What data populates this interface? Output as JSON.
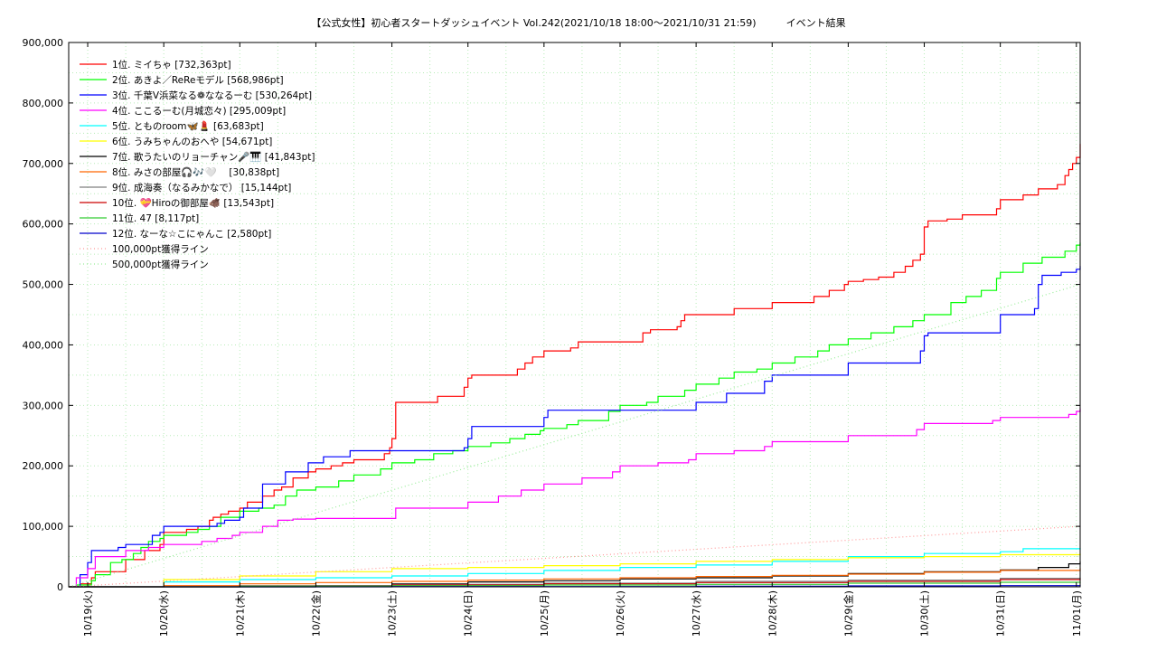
{
  "chart_data": {
    "type": "line",
    "title": "【公式女性】初心者スタートダッシュイベント Vol.242(2021/10/18 18:00～2021/10/31 21:59)　　　イベント結果",
    "xlabel": "",
    "ylabel": "",
    "ylim": [
      0,
      900000
    ],
    "xlim": [
      "2021-10-18 18:00",
      "2021-11-01 00:00"
    ],
    "y_ticks": [
      "0",
      "100,000",
      "200,000",
      "300,000",
      "400,000",
      "500,000",
      "600,000",
      "700,000",
      "800,000",
      "900,000"
    ],
    "x_ticks": [
      "10/19(火)",
      "10/20(水)",
      "10/21(木)",
      "10/22(金)",
      "10/23(土)",
      "10/24(日)",
      "10/25(月)",
      "10/26(火)",
      "10/27(水)",
      "10/28(木)",
      "10/29(金)",
      "10/30(土)",
      "10/31(日)",
      "11/01(月)"
    ],
    "grid": true,
    "legend_position": "top-left",
    "x_unit": "day offset from 10/19 00:00",
    "series": [
      {
        "name": "1位. ミイちゃ [732,363pt]",
        "color": "#ff0000",
        "style": "solid",
        "x": [
          -0.25,
          -0.1,
          0.05,
          0.1,
          0.35,
          0.5,
          0.75,
          0.95,
          1.0,
          1.3,
          1.45,
          1.6,
          1.65,
          1.75,
          1.85,
          2.0,
          2.1,
          2.3,
          2.45,
          2.55,
          2.7,
          2.9,
          3.0,
          3.2,
          3.35,
          3.5,
          3.9,
          3.97,
          4.0,
          4.05,
          4.3,
          4.6,
          4.95,
          5.0,
          5.05,
          5.4,
          5.65,
          5.75,
          5.85,
          6.0,
          6.35,
          6.45,
          7.0,
          7.3,
          7.4,
          7.75,
          7.8,
          7.85,
          8.0,
          8.4,
          8.5,
          9.0,
          9.35,
          9.55,
          9.75,
          9.95,
          10.0,
          10.2,
          10.4,
          10.6,
          10.75,
          10.85,
          10.95,
          11.0,
          11.05,
          11.3,
          11.5,
          11.95,
          12.0,
          12.3,
          12.5,
          12.75,
          12.85,
          12.9,
          12.95,
          13.0,
          13.05
        ],
        "y": [
          0,
          5000,
          15000,
          25000,
          25000,
          45000,
          60000,
          70000,
          90000,
          95000,
          100000,
          110000,
          115000,
          120000,
          125000,
          130000,
          140000,
          150000,
          160000,
          165000,
          180000,
          190000,
          195000,
          200000,
          205000,
          210000,
          220000,
          230000,
          245000,
          305000,
          305000,
          315000,
          330000,
          345000,
          350000,
          350000,
          360000,
          370000,
          380000,
          390000,
          395000,
          405000,
          405000,
          420000,
          425000,
          430000,
          440000,
          450000,
          450000,
          450000,
          460000,
          470000,
          470000,
          480000,
          490000,
          500000,
          505000,
          508000,
          512000,
          520000,
          530000,
          540000,
          550000,
          595000,
          605000,
          608000,
          615000,
          625000,
          640000,
          648000,
          658000,
          665000,
          680000,
          690000,
          700000,
          710000,
          732363
        ]
      },
      {
        "name": "2位. あきよ／ReReモデル [568,986pt]",
        "color": "#00ff00",
        "style": "solid",
        "x": [
          -0.25,
          -0.15,
          0.05,
          0.1,
          0.3,
          0.45,
          0.6,
          0.7,
          0.8,
          0.95,
          1.0,
          1.3,
          1.45,
          1.6,
          1.75,
          2.0,
          2.25,
          2.45,
          2.6,
          2.75,
          3.0,
          3.3,
          3.5,
          3.85,
          4.0,
          4.3,
          4.55,
          4.8,
          5.0,
          5.3,
          5.55,
          5.75,
          5.95,
          6.0,
          6.3,
          6.45,
          6.85,
          7.0,
          7.35,
          7.5,
          7.85,
          8.0,
          8.3,
          8.5,
          8.8,
          9.0,
          9.3,
          9.6,
          9.75,
          10.0,
          10.3,
          10.6,
          10.85,
          11.0,
          11.35,
          11.55,
          11.75,
          11.95,
          12.0,
          12.3,
          12.55,
          12.75,
          12.85,
          13.0,
          13.05
        ],
        "y": [
          0,
          3000,
          10000,
          20000,
          40000,
          45000,
          55000,
          65000,
          75000,
          80000,
          85000,
          90000,
          95000,
          100000,
          115000,
          125000,
          130000,
          135000,
          150000,
          160000,
          165000,
          175000,
          185000,
          195000,
          205000,
          210000,
          220000,
          225000,
          232000,
          238000,
          245000,
          252000,
          258000,
          262000,
          268000,
          275000,
          290000,
          300000,
          305000,
          315000,
          325000,
          335000,
          345000,
          355000,
          360000,
          370000,
          380000,
          390000,
          400000,
          410000,
          420000,
          430000,
          440000,
          450000,
          470000,
          480000,
          490000,
          510000,
          520000,
          535000,
          545000,
          545000,
          555000,
          565000,
          568986
        ]
      },
      {
        "name": "3位. 千葉V浜菜なる❁ななるーむ [530,264pt]",
        "color": "#0000ff",
        "style": "solid",
        "x": [
          -0.25,
          -0.1,
          0.0,
          0.05,
          0.4,
          0.5,
          0.85,
          0.95,
          1.0,
          1.7,
          1.8,
          2.0,
          2.05,
          2.3,
          2.6,
          2.9,
          3.1,
          3.45,
          3.9,
          4.3,
          4.95,
          5.0,
          5.05,
          5.9,
          6.0,
          6.05,
          7.0,
          7.95,
          8.0,
          8.4,
          8.9,
          9.0,
          9.9,
          10.0,
          10.95,
          11.0,
          11.05,
          11.9,
          12.0,
          12.45,
          12.5,
          12.55,
          12.8,
          13.0,
          13.05
        ],
        "y": [
          0,
          20000,
          40000,
          60000,
          65000,
          70000,
          85000,
          90000,
          100000,
          105000,
          110000,
          115000,
          130000,
          170000,
          190000,
          205000,
          215000,
          225000,
          225000,
          225000,
          230000,
          245000,
          265000,
          265000,
          280000,
          292000,
          292000,
          292000,
          305000,
          320000,
          340000,
          350000,
          350000,
          370000,
          390000,
          415000,
          420000,
          420000,
          450000,
          460000,
          500000,
          515000,
          520000,
          525000,
          530264
        ]
      },
      {
        "name": "4位. ここるーむ(月城恋々) [295,009pt]",
        "color": "#ff00ff",
        "style": "solid",
        "x": [
          -0.25,
          -0.15,
          0.0,
          0.1,
          0.5,
          0.8,
          1.0,
          1.5,
          1.7,
          1.9,
          2.0,
          2.3,
          2.5,
          2.7,
          3.0,
          4.0,
          4.05,
          5.0,
          5.4,
          5.7,
          6.0,
          6.5,
          6.9,
          7.0,
          7.5,
          7.9,
          8.0,
          8.5,
          8.9,
          9.0,
          9.9,
          10.0,
          10.9,
          11.0,
          11.9,
          12.0,
          12.9,
          13.0,
          13.05
        ],
        "y": [
          0,
          15000,
          30000,
          50000,
          60000,
          65000,
          70000,
          75000,
          80000,
          85000,
          90000,
          100000,
          110000,
          112000,
          113000,
          113000,
          130000,
          140000,
          150000,
          160000,
          170000,
          180000,
          190000,
          200000,
          205000,
          210000,
          220000,
          225000,
          232000,
          240000,
          240000,
          250000,
          260000,
          270000,
          275000,
          280000,
          285000,
          290000,
          295009
        ]
      },
      {
        "name": "5位. とものroom🦋💄 [63,683pt]",
        "color": "#00ffff",
        "style": "solid",
        "x": [
          -0.25,
          1.0,
          2.0,
          3.0,
          4.0,
          5.0,
          6.0,
          7.0,
          8.0,
          9.0,
          10.0,
          11.0,
          12.0,
          12.3,
          13.05
        ],
        "y": [
          0,
          8000,
          12000,
          15000,
          18000,
          22000,
          27000,
          32000,
          36000,
          42000,
          50000,
          55000,
          58000,
          63000,
          63683
        ]
      },
      {
        "name": "6位. うみちゃんのおへや [54,671pt]",
        "color": "#ffff00",
        "style": "solid",
        "x": [
          -0.25,
          1.0,
          2.0,
          3.0,
          4.0,
          5.0,
          6.0,
          7.0,
          8.0,
          9.0,
          10.0,
          11.0,
          12.0,
          13.05
        ],
        "y": [
          0,
          12000,
          18000,
          25000,
          30000,
          32000,
          35000,
          38000,
          42000,
          45000,
          48000,
          50000,
          53000,
          54671
        ]
      },
      {
        "name": "7位. 歌うたいのリョーチャン🎤🎹 [41,843pt]",
        "color": "#000000",
        "style": "solid",
        "x": [
          -0.25,
          1.0,
          3.0,
          4.0,
          5.0,
          6.0,
          7.0,
          8.0,
          9.0,
          10.0,
          11.0,
          12.0,
          12.5,
          12.9,
          13.05
        ],
        "y": [
          0,
          0,
          2000,
          5000,
          8000,
          10000,
          13000,
          15000,
          18000,
          22000,
          25000,
          28000,
          32000,
          38000,
          41843
        ]
      },
      {
        "name": "8位. みさの部屋🎧🎶🤍　 [30,838pt]",
        "color": "#ff6600",
        "style": "solid",
        "x": [
          -0.25,
          1.0,
          2.0,
          3.0,
          4.0,
          5.0,
          6.0,
          7.0,
          8.0,
          9.0,
          10.0,
          11.0,
          12.0,
          13.05
        ],
        "y": [
          0,
          2000,
          5000,
          7000,
          9000,
          11000,
          13000,
          15000,
          17000,
          19000,
          21000,
          24000,
          27000,
          30838
        ]
      },
      {
        "name": "9位. 成海奏（なるみかなで） [15,144pt]",
        "color": "#808080",
        "style": "solid",
        "x": [
          -0.25,
          2.0,
          4.0,
          6.0,
          8.0,
          10.0,
          12.0,
          13.05
        ],
        "y": [
          0,
          2000,
          4000,
          6000,
          9000,
          11000,
          14000,
          15144
        ]
      },
      {
        "name": "10位. 💝Hiroの御部屋🐗 [13,543pt]",
        "color": "#cc0000",
        "style": "solid",
        "x": [
          -0.25,
          2.0,
          4.0,
          6.0,
          8.0,
          10.0,
          12.0,
          13.05
        ],
        "y": [
          0,
          1000,
          3000,
          5000,
          7000,
          9000,
          12000,
          13543
        ]
      },
      {
        "name": "11位. 47 [8,117pt]",
        "color": "#33cc33",
        "style": "solid",
        "x": [
          -0.25,
          2.0,
          4.0,
          6.0,
          8.0,
          10.0,
          12.0,
          13.05
        ],
        "y": [
          0,
          1000,
          2000,
          3000,
          4000,
          6000,
          7500,
          8117
        ]
      },
      {
        "name": "12位. なーな☆こにゃんこ [2,580pt]",
        "color": "#0000cc",
        "style": "solid",
        "x": [
          -0.25,
          4.0,
          8.0,
          10.0,
          12.0,
          13.05
        ],
        "y": [
          0,
          500,
          1000,
          1500,
          2000,
          2580
        ]
      },
      {
        "name": "100,000pt獲得ライン",
        "color": "#ff9999",
        "style": "dotted",
        "x": [
          -0.25,
          13.05
        ],
        "y": [
          0,
          100000
        ]
      },
      {
        "name": "500,000pt獲得ライン",
        "color": "#99ee99",
        "style": "dotted",
        "x": [
          -0.25,
          13.05
        ],
        "y": [
          0,
          500000
        ]
      }
    ]
  }
}
